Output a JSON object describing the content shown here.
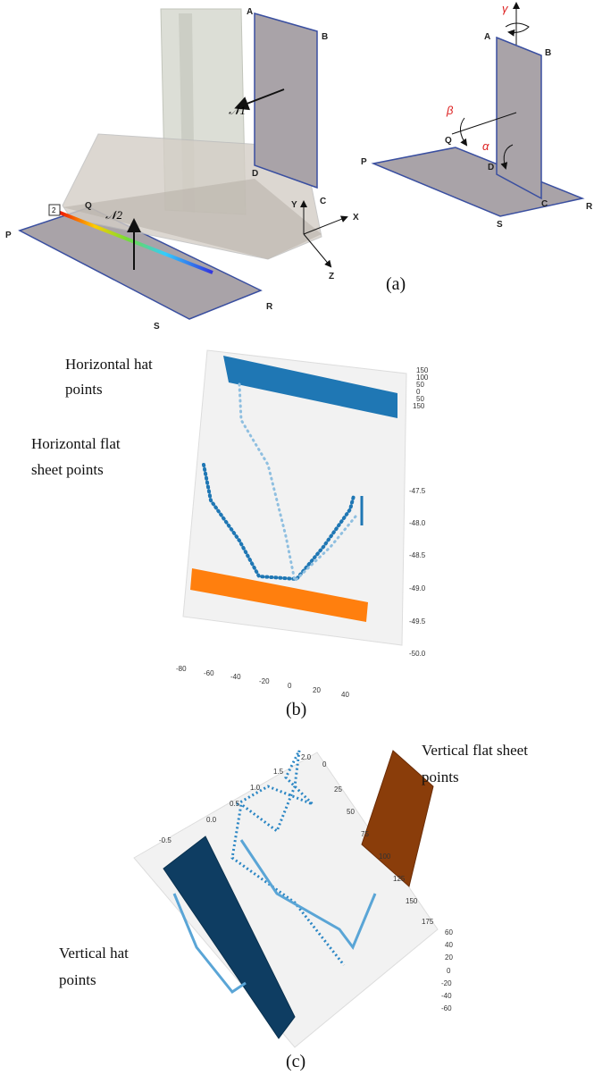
{
  "panel_a": {
    "left_labels": {
      "A": "A",
      "B": "B",
      "C": "C",
      "D": "D",
      "N1": "𝒩1",
      "N2": "𝒩2",
      "P": "P",
      "Q": "Q",
      "R": "R",
      "S": "S",
      "marker": "2",
      "axis_x": "X",
      "axis_y": "Y",
      "axis_z": "Z"
    },
    "right_labels": {
      "A": "A",
      "B": "B",
      "C": "C",
      "D": "D",
      "P": "P",
      "Q": "Q",
      "R": "R",
      "S": "S",
      "gamma": "γ",
      "beta": "β",
      "alpha": "α"
    },
    "caption": "(a)"
  },
  "panel_b": {
    "annotation_hat": [
      "Horizontal hat",
      "points"
    ],
    "annotation_flat": [
      "Horizontal flat",
      "sheet points"
    ],
    "top_ticks": [
      "150",
      "100",
      "50",
      "0",
      "50",
      "150"
    ],
    "right_ticks": [
      "-47.5",
      "-48.0",
      "-48.5",
      "-49.0",
      "-49.5",
      "-50.0"
    ],
    "bottom_ticks": [
      "-80",
      "-60",
      "-40",
      "-20",
      "0",
      "20",
      "40"
    ],
    "caption": "(b)"
  },
  "panel_c": {
    "annotation_flat": [
      "Vertical flat sheet",
      "points"
    ],
    "annotation_hat": [
      "Vertical hat",
      "points"
    ],
    "left_ticks": [
      "2.0",
      "1.5",
      "1.0",
      "0.5",
      "0.0",
      "-0.5"
    ],
    "top_ticks": [
      "0",
      "25",
      "50",
      "75",
      "100",
      "125",
      "150",
      "175"
    ],
    "right_ticks": [
      "60",
      "40",
      "20",
      "0",
      "-20",
      "-40",
      "-60"
    ],
    "caption": "(c)"
  }
}
